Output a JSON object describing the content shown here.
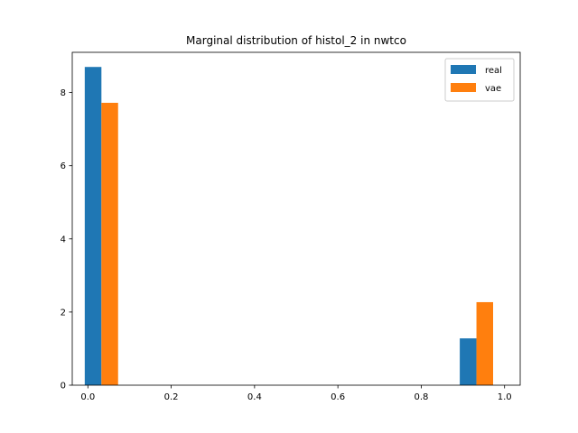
{
  "chart_data": {
    "type": "bar",
    "title": "Marginal distribution of histol_2 in nwtco",
    "xlabel": "",
    "ylabel": "",
    "xlim": [
      -0.0375,
      1.0375
    ],
    "ylim": [
      0,
      9.1
    ],
    "xticks": [
      0.0,
      0.2,
      0.4,
      0.6,
      0.8,
      1.0
    ],
    "xtick_labels": [
      "0.0",
      "0.2",
      "0.4",
      "0.6",
      "0.8",
      "1.0"
    ],
    "yticks": [
      0,
      2,
      4,
      6,
      8
    ],
    "ytick_labels": [
      "0",
      "2",
      "4",
      "6",
      "8"
    ],
    "bar_width": 0.04,
    "grid": false,
    "legend_position": "top-right",
    "series": [
      {
        "name": "real",
        "color": "#1f77b4",
        "x": [
          0.0125,
          0.9125
        ],
        "values": [
          8.7,
          1.28
        ]
      },
      {
        "name": "vae",
        "color": "#ff7f0e",
        "x": [
          0.0525,
          0.9525
        ],
        "values": [
          7.72,
          2.27
        ]
      }
    ]
  }
}
